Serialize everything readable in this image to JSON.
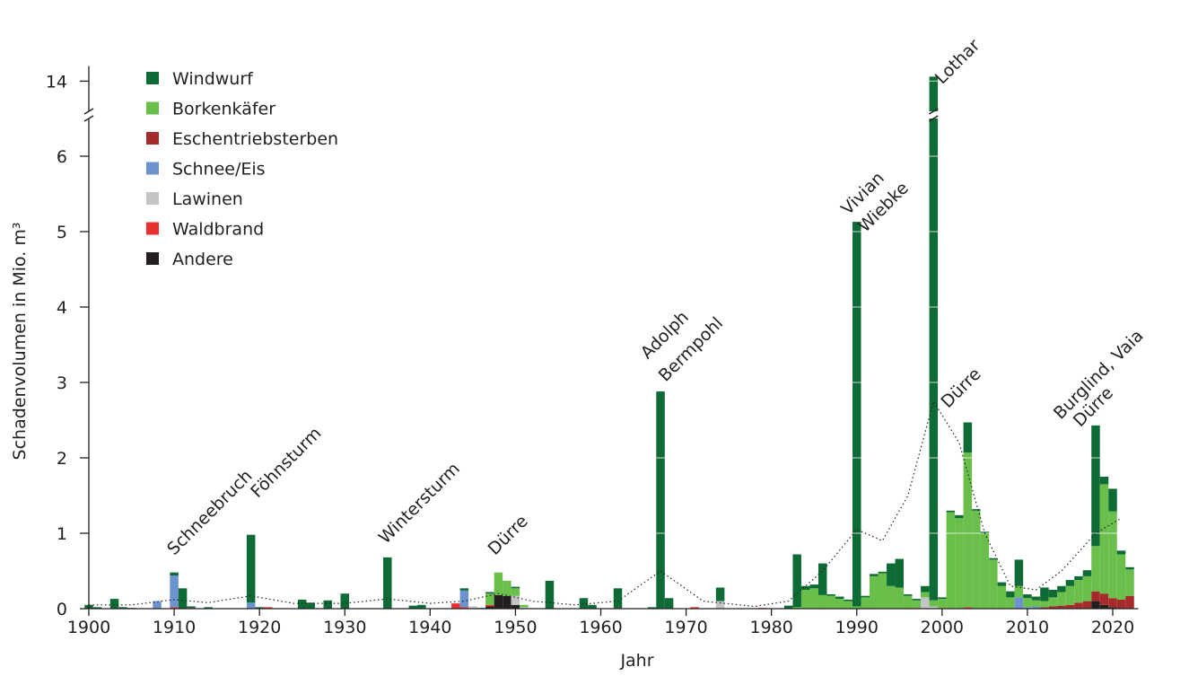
{
  "chart_data": {
    "type": "stacked-bar",
    "ylabel": "Schadenvolumen in Mio. m³",
    "xlabel": "Jahr",
    "xlim": [
      1900,
      2023
    ],
    "ylim": [
      0,
      14.2
    ],
    "ybreak": [
      6.5,
      13.6
    ],
    "xticks": [
      1900,
      1910,
      1920,
      1930,
      1940,
      1950,
      1960,
      1970,
      1980,
      1990,
      2000,
      2010,
      2020
    ],
    "yticks": [
      0,
      1,
      2,
      3,
      4,
      5,
      6,
      14
    ],
    "grid": true,
    "x": [
      1900,
      1901,
      1902,
      1903,
      1904,
      1905,
      1906,
      1907,
      1908,
      1909,
      1910,
      1911,
      1912,
      1913,
      1914,
      1915,
      1916,
      1917,
      1918,
      1919,
      1920,
      1921,
      1922,
      1923,
      1924,
      1925,
      1926,
      1927,
      1928,
      1929,
      1930,
      1931,
      1932,
      1933,
      1934,
      1935,
      1936,
      1937,
      1938,
      1939,
      1940,
      1941,
      1942,
      1943,
      1944,
      1945,
      1946,
      1947,
      1948,
      1949,
      1950,
      1951,
      1952,
      1953,
      1954,
      1955,
      1956,
      1957,
      1958,
      1959,
      1960,
      1961,
      1962,
      1963,
      1964,
      1965,
      1966,
      1967,
      1968,
      1969,
      1970,
      1971,
      1972,
      1973,
      1974,
      1975,
      1976,
      1977,
      1978,
      1979,
      1980,
      1981,
      1982,
      1983,
      1984,
      1985,
      1986,
      1987,
      1988,
      1989,
      1990,
      1991,
      1992,
      1993,
      1994,
      1995,
      1996,
      1997,
      1998,
      1999,
      2000,
      2001,
      2002,
      2003,
      2004,
      2005,
      2006,
      2007,
      2008,
      2009,
      2010,
      2011,
      2012,
      2013,
      2014,
      2015,
      2016,
      2017,
      2018,
      2019,
      2020,
      2021,
      2022
    ],
    "series": [
      {
        "name": "Windwurf",
        "color": "#0e6b35",
        "values": [
          0.05,
          0.02,
          0,
          0.13,
          0.02,
          0.01,
          0,
          0,
          0,
          0,
          0.04,
          0.27,
          0.02,
          0,
          0.02,
          0,
          0,
          0,
          0,
          0.9,
          0.02,
          0,
          0,
          0,
          0,
          0.12,
          0.08,
          0,
          0.11,
          0,
          0.2,
          0,
          0,
          0,
          0,
          0.68,
          0,
          0,
          0.04,
          0.05,
          0,
          0,
          0,
          0,
          0.03,
          0,
          0.01,
          0.02,
          0,
          0,
          0.02,
          0,
          0,
          0,
          0.37,
          0,
          0,
          0,
          0.14,
          0.05,
          0,
          0,
          0.26,
          0,
          0,
          0,
          0.02,
          2.88,
          0.14,
          0,
          0,
          0,
          0,
          0,
          0.18,
          0,
          0,
          0,
          0,
          0,
          0,
          0,
          0.04,
          0.7,
          0.05,
          0.05,
          0.42,
          0.02,
          0.03,
          0.02,
          5.1,
          0.02,
          0.03,
          0.02,
          0.3,
          0.38,
          0.02,
          0.02,
          0.08,
          13.95,
          0.02,
          0.02,
          0.04,
          0.4,
          0.02,
          0.02,
          0.02,
          0.05,
          0.08,
          0.35,
          0.05,
          0.05,
          0.18,
          0.1,
          0.08,
          0.08,
          0.05,
          0.08,
          1.6,
          0.1,
          0.3,
          0.05,
          0.03
        ]
      },
      {
        "name": "Borkenkäfer",
        "color": "#6abf4b",
        "values": [
          0,
          0,
          0,
          0,
          0,
          0,
          0,
          0,
          0,
          0,
          0,
          0,
          0,
          0,
          0,
          0,
          0,
          0,
          0,
          0,
          0,
          0,
          0,
          0,
          0,
          0,
          0,
          0,
          0,
          0,
          0,
          0,
          0,
          0,
          0,
          0,
          0,
          0,
          0,
          0,
          0,
          0,
          0,
          0,
          0,
          0,
          0,
          0.15,
          0.3,
          0.2,
          0.1,
          0.03,
          0,
          0,
          0,
          0,
          0,
          0,
          0,
          0,
          0,
          0,
          0,
          0,
          0,
          0,
          0,
          0,
          0,
          0,
          0,
          0,
          0,
          0,
          0,
          0,
          0,
          0,
          0,
          0,
          0,
          0,
          0,
          0.02,
          0.25,
          0.27,
          0.18,
          0.17,
          0.13,
          0.1,
          0.03,
          0.15,
          0.43,
          0.47,
          0.3,
          0.28,
          0.17,
          0.1,
          0.07,
          0.08,
          0.13,
          1.28,
          1.2,
          2.05,
          1.3,
          1.0,
          0.65,
          0.3,
          0.15,
          0.15,
          0.12,
          0.08,
          0.08,
          0.12,
          0.18,
          0.25,
          0.3,
          0.33,
          0.6,
          1.45,
          1.15,
          0.6,
          0.35
        ]
      },
      {
        "name": "Eschentriebsterben",
        "color": "#a52a2a",
        "values": [
          0,
          0,
          0,
          0,
          0,
          0,
          0,
          0,
          0,
          0,
          0,
          0,
          0,
          0,
          0,
          0,
          0,
          0,
          0,
          0,
          0,
          0,
          0,
          0,
          0,
          0,
          0,
          0,
          0,
          0,
          0,
          0,
          0,
          0,
          0,
          0,
          0,
          0,
          0,
          0,
          0,
          0,
          0,
          0,
          0,
          0,
          0,
          0,
          0,
          0,
          0,
          0,
          0,
          0,
          0,
          0,
          0,
          0,
          0,
          0,
          0,
          0,
          0,
          0,
          0,
          0,
          0,
          0,
          0,
          0,
          0,
          0,
          0,
          0,
          0,
          0,
          0,
          0,
          0,
          0,
          0,
          0,
          0,
          0,
          0,
          0,
          0,
          0,
          0,
          0,
          0,
          0,
          0,
          0,
          0,
          0,
          0,
          0,
          0,
          0,
          0,
          0,
          0,
          0,
          0,
          0,
          0,
          0,
          0,
          0,
          0,
          0,
          0.02,
          0.03,
          0.04,
          0.05,
          0.08,
          0.1,
          0.13,
          0.15,
          0.12,
          0.12,
          0.17
        ]
      },
      {
        "name": "Schnee/Eis",
        "color": "#6c93cf",
        "values": [
          0,
          0,
          0,
          0,
          0,
          0,
          0,
          0,
          0.1,
          0,
          0.42,
          0,
          0,
          0,
          0,
          0,
          0,
          0,
          0,
          0.08,
          0,
          0,
          0,
          0,
          0,
          0,
          0,
          0,
          0,
          0,
          0,
          0,
          0,
          0,
          0,
          0,
          0,
          0,
          0,
          0,
          0,
          0,
          0,
          0,
          0.22,
          0,
          0,
          0,
          0,
          0,
          0,
          0,
          0,
          0,
          0,
          0,
          0,
          0,
          0,
          0,
          0,
          0,
          0,
          0,
          0,
          0,
          0,
          0,
          0,
          0,
          0,
          0,
          0,
          0,
          0,
          0,
          0,
          0,
          0,
          0,
          0,
          0,
          0,
          0,
          0,
          0,
          0,
          0,
          0,
          0,
          0,
          0,
          0,
          0,
          0,
          0,
          0,
          0,
          0,
          0,
          0,
          0,
          0,
          0,
          0,
          0,
          0,
          0,
          0,
          0.15,
          0.02,
          0.03,
          0,
          0,
          0,
          0,
          0,
          0,
          0,
          0,
          0,
          0,
          0
        ]
      },
      {
        "name": "Lawinen",
        "color": "#c4c4c4",
        "values": [
          0,
          0,
          0,
          0,
          0,
          0,
          0,
          0,
          0,
          0,
          0,
          0,
          0,
          0,
          0,
          0,
          0,
          0,
          0,
          0,
          0,
          0,
          0,
          0,
          0,
          0,
          0,
          0,
          0,
          0,
          0,
          0,
          0,
          0,
          0,
          0,
          0,
          0,
          0,
          0,
          0,
          0,
          0,
          0,
          0,
          0.03,
          0,
          0,
          0,
          0,
          0.12,
          0.02,
          0,
          0,
          0,
          0,
          0,
          0,
          0,
          0,
          0,
          0,
          0,
          0,
          0,
          0,
          0,
          0,
          0,
          0,
          0,
          0,
          0,
          0,
          0.1,
          0,
          0,
          0,
          0,
          0,
          0,
          0,
          0,
          0,
          0,
          0,
          0,
          0,
          0,
          0,
          0,
          0,
          0,
          0,
          0,
          0,
          0,
          0,
          0.15,
          0.03,
          0,
          0,
          0,
          0,
          0,
          0,
          0,
          0,
          0,
          0,
          0,
          0,
          0,
          0,
          0,
          0,
          0,
          0,
          0,
          0,
          0,
          0,
          0
        ]
      },
      {
        "name": "Waldbrand",
        "color": "#e8312f",
        "values": [
          0,
          0,
          0,
          0,
          0,
          0,
          0,
          0,
          0,
          0,
          0.02,
          0,
          0.01,
          0,
          0,
          0,
          0,
          0,
          0,
          0,
          0,
          0.02,
          0,
          0,
          0,
          0,
          0,
          0,
          0,
          0,
          0,
          0,
          0,
          0,
          0,
          0,
          0,
          0,
          0,
          0,
          0,
          0,
          0,
          0.07,
          0.02,
          0,
          0,
          0.02,
          0,
          0,
          0,
          0,
          0,
          0,
          0,
          0,
          0,
          0,
          0,
          0,
          0,
          0,
          0.01,
          0,
          0,
          0,
          0,
          0,
          0,
          0,
          0,
          0.02,
          0,
          0,
          0,
          0,
          0,
          0,
          0,
          0.01,
          0,
          0,
          0,
          0,
          0,
          0,
          0,
          0,
          0,
          0,
          0,
          0,
          0,
          0,
          0,
          0,
          0,
          0.01,
          0,
          0,
          0,
          0,
          0,
          0.02,
          0,
          0,
          0,
          0,
          0,
          0,
          0,
          0,
          0,
          0,
          0,
          0,
          0,
          0,
          0,
          0,
          0,
          0,
          0
        ]
      },
      {
        "name": "Andere",
        "color": "#231f20",
        "values": [
          0,
          0,
          0,
          0,
          0,
          0,
          0,
          0,
          0,
          0,
          0,
          0,
          0,
          0,
          0,
          0,
          0,
          0,
          0,
          0,
          0,
          0,
          0,
          0,
          0,
          0,
          0,
          0,
          0,
          0,
          0,
          0,
          0,
          0,
          0,
          0,
          0,
          0,
          0,
          0,
          0,
          0,
          0,
          0,
          0,
          0,
          0,
          0.03,
          0.18,
          0.17,
          0.05,
          0,
          0,
          0,
          0,
          0,
          0,
          0,
          0,
          0,
          0,
          0,
          0,
          0,
          0,
          0,
          0,
          0,
          0,
          0,
          0,
          0,
          0,
          0,
          0,
          0,
          0,
          0,
          0,
          0,
          0,
          0,
          0,
          0,
          0,
          0,
          0,
          0,
          0,
          0,
          0,
          0,
          0,
          0,
          0,
          0,
          0,
          0,
          0,
          0,
          0,
          0,
          0,
          0,
          0,
          0,
          0,
          0,
          0,
          0,
          0,
          0,
          0,
          0,
          0,
          0,
          0,
          0,
          0.1,
          0.05,
          0.02,
          0,
          0
        ]
      }
    ],
    "trend": {
      "x": [
        1900,
        1905,
        1910,
        1914,
        1919,
        1924,
        1930,
        1935,
        1940,
        1944,
        1948,
        1952,
        1957,
        1962,
        1967,
        1972,
        1978,
        1982,
        1986,
        1990,
        1993,
        1996,
        1999,
        2002,
        2005,
        2008,
        2011,
        2014,
        2018,
        2021
      ],
      "values": [
        0.05,
        0.05,
        0.12,
        0.08,
        0.17,
        0.07,
        0.07,
        0.13,
        0.07,
        0.1,
        0.2,
        0.1,
        0.05,
        0.1,
        0.5,
        0.1,
        0.03,
        0.1,
        0.5,
        1.05,
        0.9,
        1.5,
        2.75,
        2.2,
        1.0,
        0.3,
        0.25,
        0.5,
        1.0,
        1.2
      ]
    },
    "annotations": [
      {
        "text": "Schneebruch",
        "x": 1910,
        "y": 0.7
      },
      {
        "text": "Föhnsturm",
        "x": 1919.8,
        "y": 1.46
      },
      {
        "text": "Wintersturm",
        "x": 1934.8,
        "y": 0.85
      },
      {
        "text": "Dürre",
        "x": 1947.6,
        "y": 0.7
      },
      {
        "text": "Adolph",
        "x": 1965.5,
        "y": 3.3
      },
      {
        "text": "Bermpohl",
        "x": 1967.6,
        "y": 3.0
      },
      {
        "text": "Vivian",
        "x": 1989,
        "y": 5.21
      },
      {
        "text": "Wiebke",
        "x": 1991,
        "y": 4.98
      },
      {
        "text": "Lothar",
        "x": 2000,
        "y": 13.95
      },
      {
        "text": "Dürre",
        "x": 2000.7,
        "y": 2.65
      },
      {
        "text": "Burglind, Vaia",
        "x": 2013.9,
        "y": 2.5
      },
      {
        "text": "Dürre",
        "x": 2016.2,
        "y": 2.4
      }
    ]
  }
}
